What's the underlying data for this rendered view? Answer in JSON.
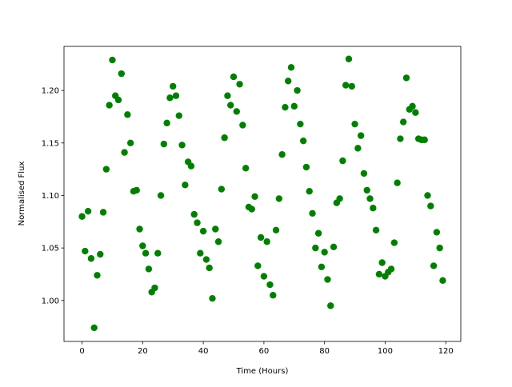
{
  "chart_data": {
    "type": "scatter",
    "xlabel": "Time (Hours)",
    "ylabel": "Normalised Flux",
    "color": "#008000",
    "x": [
      0,
      1,
      2,
      3,
      4,
      5,
      6,
      7,
      8,
      9,
      10,
      11,
      12,
      13,
      14,
      15,
      16,
      17,
      18,
      19,
      20,
      21,
      22,
      23,
      24,
      25,
      26,
      27,
      28,
      29,
      30,
      31,
      32,
      33,
      34,
      35,
      36,
      37,
      38,
      39,
      40,
      41,
      42,
      43,
      44,
      45,
      46,
      47,
      48,
      49,
      50,
      51,
      52,
      53,
      54,
      55,
      56,
      57,
      58,
      59,
      60,
      61,
      62,
      63,
      64,
      65,
      66,
      67,
      68,
      69,
      70,
      71,
      72,
      73,
      74,
      75,
      76,
      77,
      78,
      79,
      80,
      81,
      82,
      83,
      84,
      85,
      86,
      87,
      88,
      89,
      90,
      91,
      92,
      93,
      94,
      95,
      96,
      97,
      98,
      99,
      100,
      101,
      102,
      103,
      104,
      105,
      106,
      107,
      108,
      109,
      110,
      111,
      112,
      113,
      114,
      115,
      116,
      117,
      118,
      119
    ],
    "values": [
      1.08,
      1.047,
      1.085,
      1.04,
      0.974,
      1.024,
      1.044,
      1.084,
      1.125,
      1.186,
      1.229,
      1.195,
      1.191,
      1.216,
      1.141,
      1.177,
      1.15,
      1.104,
      1.105,
      1.068,
      1.052,
      1.045,
      1.03,
      1.008,
      1.012,
      1.045,
      1.1,
      1.149,
      1.169,
      1.193,
      1.204,
      1.195,
      1.176,
      1.148,
      1.11,
      1.132,
      1.128,
      1.082,
      1.074,
      1.045,
      1.066,
      1.039,
      1.031,
      1.002,
      1.068,
      1.056,
      1.106,
      1.155,
      1.195,
      1.186,
      1.213,
      1.18,
      1.206,
      1.167,
      1.126,
      1.089,
      1.087,
      1.099,
      1.033,
      1.06,
      1.023,
      1.056,
      1.015,
      1.005,
      1.067,
      1.097,
      1.139,
      1.184,
      1.209,
      1.222,
      1.185,
      1.2,
      1.168,
      1.152,
      1.127,
      1.104,
      1.083,
      1.05,
      1.064,
      1.032,
      1.046,
      1.02,
      0.995,
      1.051,
      1.093,
      1.097,
      1.133,
      1.205,
      1.23,
      1.204,
      1.168,
      1.145,
      1.157,
      1.121,
      1.105,
      1.097,
      1.088,
      1.067,
      1.025,
      1.036,
      1.023,
      1.027,
      1.03,
      1.055,
      1.112,
      1.154,
      1.17,
      1.212,
      1.182,
      1.185,
      1.179,
      1.154,
      1.153,
      1.153,
      1.1,
      1.09,
      1.033,
      1.065,
      1.05,
      1.019
    ],
    "xlim": [
      -5.95,
      124.95
    ],
    "xticks": [
      0,
      20,
      40,
      60,
      80,
      100,
      120
    ],
    "ylim": [
      0.961,
      1.242
    ],
    "yticks": [
      {
        "value": 1.0,
        "label": "1.00"
      },
      {
        "value": 1.05,
        "label": "1.05"
      },
      {
        "value": 1.1,
        "label": "1.10"
      },
      {
        "value": 1.15,
        "label": "1.15"
      },
      {
        "value": 1.2,
        "label": "1.20"
      }
    ]
  }
}
